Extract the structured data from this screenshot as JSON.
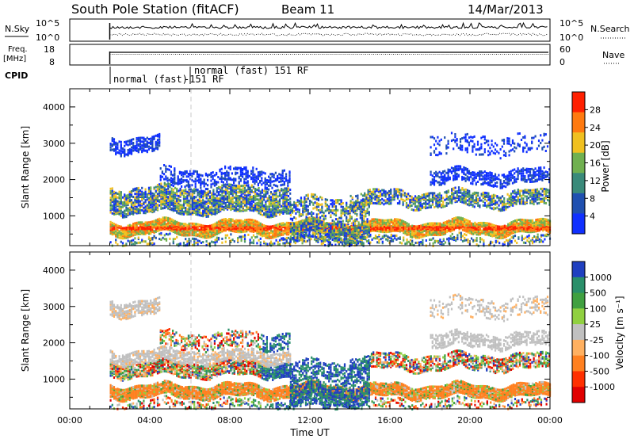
{
  "header": {
    "station": "South Pole Station (fitACF)",
    "beam": "Beam 11",
    "date": "14/Mar/2013"
  },
  "strip_labels": {
    "nsky": "N.Sky",
    "freq_line1": "Freq.",
    "freq_line2": "[MHz]",
    "cpid": "CPID",
    "nsearch": "N.Search",
    "nave": "Nave",
    "nsky_top": "10^5",
    "nsky_bottom": "10^0",
    "nsearch_top": "10^5",
    "nsearch_bottom": "10^0",
    "freq_top": "18",
    "freq_bottom": "8",
    "nave_top": "60",
    "nave_bottom": "0",
    "cpid_label_1": "normal (fast)",
    "cpid_label_2": "normal (fast) 151 RF",
    "cpid_label_3": "-151 RF"
  },
  "chart_data": [
    {
      "type": "heatmap",
      "name": "power-panel",
      "title": "",
      "xlabel": "",
      "ylabel": "Slant Range [km]",
      "x_unit": "hours UT",
      "xlim": [
        0,
        24
      ],
      "ylim": [
        180,
        4500
      ],
      "yticks": [
        1000,
        2000,
        3000,
        4000
      ],
      "colorbar": {
        "label": "Power [dB]",
        "ticks": [
          "4",
          "8",
          "12",
          "16",
          "20",
          "24",
          "28"
        ],
        "colors": [
          "#1030ff",
          "#2050b0",
          "#3a8a7a",
          "#70b050",
          "#f0c020",
          "#ff7a10",
          "#ff2000"
        ]
      },
      "data_start_hour": 2.0,
      "dashed_marker_hour": 6.0
    },
    {
      "type": "heatmap",
      "name": "velocity-panel",
      "title": "",
      "xlabel": "Time UT",
      "ylabel": "Slant Range [km]",
      "x_unit": "hours UT",
      "xlim": [
        0,
        24
      ],
      "ylim": [
        180,
        4500
      ],
      "yticks": [
        1000,
        2000,
        3000,
        4000
      ],
      "xticks": [
        "00:00",
        "04:00",
        "08:00",
        "12:00",
        "16:00",
        "20:00",
        "00:00"
      ],
      "colorbar": {
        "label": "Velocity [m s⁻¹]",
        "ticks": [
          "1000",
          "500",
          "100",
          "25",
          "-25",
          "-100",
          "-500",
          "-1000"
        ],
        "colors": [
          "#2040c0",
          "#2a8f6a",
          "#40a040",
          "#90d040",
          "#c0c0c0",
          "#ffb060",
          "#ff8020",
          "#ff3000",
          "#e00000"
        ]
      },
      "data_start_hour": 2.0,
      "dashed_marker_hour": 6.0
    }
  ]
}
